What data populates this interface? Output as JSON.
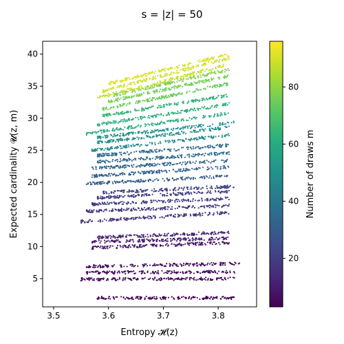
{
  "chart_data": {
    "type": "scatter",
    "title": "s = |z| =  50",
    "xlabel": "Entropy 𝓗(z)",
    "ylabel": "Expected cardinality 𝓤(z, m)",
    "xlim": [
      3.48,
      3.87
    ],
    "ylim": [
      0.6,
      42
    ],
    "x_ticks": [
      "3.5",
      "3.6",
      "3.7",
      "3.8"
    ],
    "y_ticks": [
      "5",
      "10",
      "15",
      "20",
      "25",
      "30",
      "35",
      "40"
    ],
    "grid": false,
    "colorbar": {
      "label": "Number of draws m",
      "colormap": "viridis",
      "range": [
        3,
        96
      ],
      "ticks": [
        "20",
        "40",
        "60",
        "80"
      ]
    },
    "series": [
      {
        "m": 3,
        "bands": [
          {
            "x": [
              3.58,
              3.83
            ],
            "y": [
              2.0,
              2.0
            ]
          }
        ]
      },
      {
        "m": 5,
        "bands": [
          {
            "x": [
              3.55,
              3.83
            ],
            "y": [
              4.9,
              5.0
            ]
          },
          {
            "x": [
              3.56,
              3.83
            ],
            "y": [
              5.95,
              6.05
            ]
          },
          {
            "x": [
              3.56,
              3.84
            ],
            "y": [
              6.9,
              7.35
            ]
          }
        ]
      },
      {
        "m": 10,
        "bands": [
          {
            "x": [
              3.57,
              3.82
            ],
            "y": [
              9.8,
              10.6
            ]
          },
          {
            "x": [
              3.57,
              3.82
            ],
            "y": [
              10.7,
              11.3
            ]
          },
          {
            "x": [
              3.58,
              3.82
            ],
            "y": [
              11.4,
              12.2
            ]
          }
        ]
      },
      {
        "m": 18,
        "bands": [
          {
            "x": [
              3.55,
              3.82
            ],
            "y": [
              13.9,
              15.3
            ]
          },
          {
            "x": [
              3.56,
              3.82
            ],
            "y": [
              15.5,
              16.4
            ]
          },
          {
            "x": [
              3.57,
              3.82
            ],
            "y": [
              16.6,
              17.5
            ]
          },
          {
            "x": [
              3.58,
              3.82
            ],
            "y": [
              17.6,
              18.6
            ]
          },
          {
            "x": [
              3.59,
              3.83
            ],
            "y": [
              18.4,
              19.4
            ]
          }
        ]
      },
      {
        "m": 32,
        "bands": [
          {
            "x": [
              3.56,
              3.82
            ],
            "y": [
              19.8,
              21.0
            ]
          },
          {
            "x": [
              3.57,
              3.82
            ],
            "y": [
              21.0,
              22.4
            ]
          },
          {
            "x": [
              3.57,
              3.82
            ],
            "y": [
              22.2,
              23.4
            ]
          },
          {
            "x": [
              3.58,
              3.82
            ],
            "y": [
              23.2,
              24.6
            ]
          },
          {
            "x": [
              3.58,
              3.82
            ],
            "y": [
              24.2,
              25.8
            ]
          }
        ]
      },
      {
        "m": 48,
        "bands": [
          {
            "x": [
              3.57,
              3.82
            ],
            "y": [
              25.0,
              27.4
            ]
          },
          {
            "x": [
              3.58,
              3.82
            ],
            "y": [
              26.2,
              28.6
            ]
          },
          {
            "x": [
              3.58,
              3.83
            ],
            "y": [
              27.0,
              29.4
            ]
          }
        ]
      },
      {
        "m": 62,
        "bands": [
          {
            "x": [
              3.56,
              3.82
            ],
            "y": [
              27.6,
              30.8
            ]
          },
          {
            "x": [
              3.58,
              3.82
            ],
            "y": [
              29.0,
              32.2
            ]
          },
          {
            "x": [
              3.59,
              3.82
            ],
            "y": [
              30.4,
              33.6
            ]
          }
        ]
      },
      {
        "m": 76,
        "bands": [
          {
            "x": [
              3.59,
              3.82
            ],
            "y": [
              31.4,
              35.4
            ]
          },
          {
            "x": [
              3.6,
              3.82
            ],
            "y": [
              32.6,
              36.6
            ]
          },
          {
            "x": [
              3.61,
              3.82
            ],
            "y": [
              33.6,
              37.6
            ]
          }
        ]
      },
      {
        "m": 90,
        "bands": [
          {
            "x": [
              3.58,
              3.81
            ],
            "y": [
              33.2,
              38.2
            ]
          },
          {
            "x": [
              3.59,
              3.82
            ],
            "y": [
              34.2,
              39.4
            ]
          },
          {
            "x": [
              3.6,
              3.82
            ],
            "y": [
              35.4,
              40.0
            ]
          }
        ]
      }
    ]
  }
}
